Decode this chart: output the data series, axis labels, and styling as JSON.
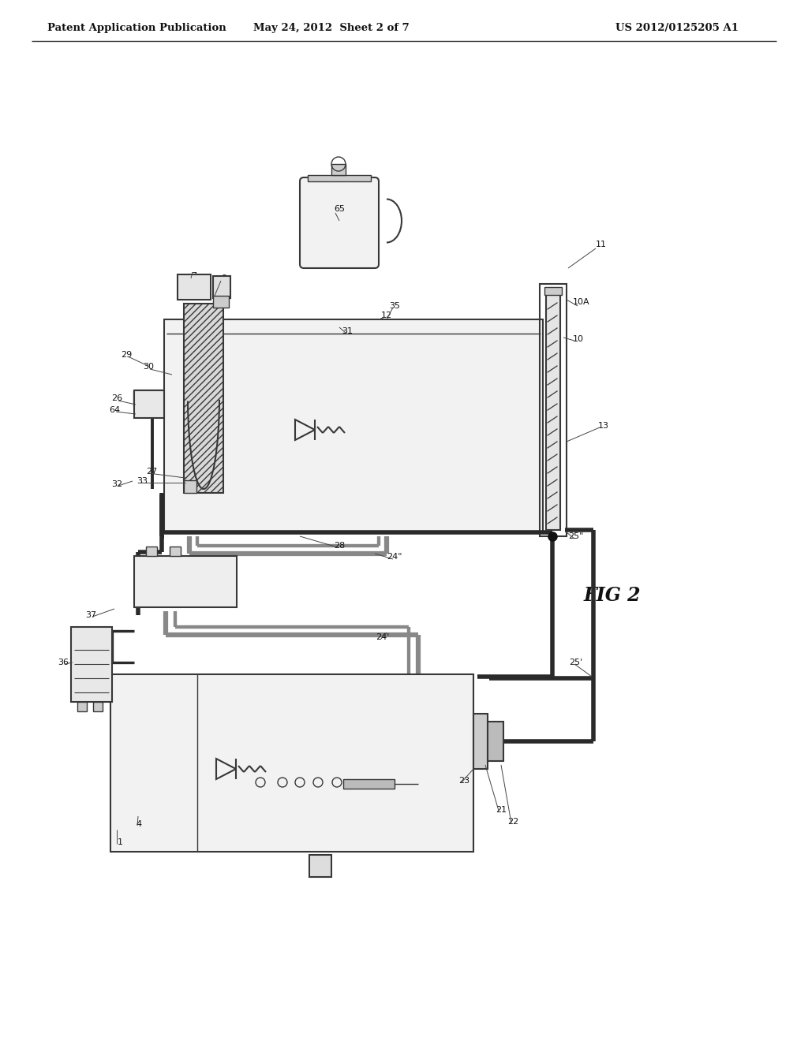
{
  "bg_color": "#ffffff",
  "header_left": "Patent Application Publication",
  "header_mid": "May 24, 2012  Sheet 2 of 7",
  "header_right": "US 2012/0125205 A1",
  "fig_label": "FIG 2",
  "lc": "#383838",
  "pipe_dark": "#2a2a2a",
  "pipe_gray": "#888888",
  "fill_light": "#f2f2f2",
  "fill_hatch": "#d8d8d8"
}
